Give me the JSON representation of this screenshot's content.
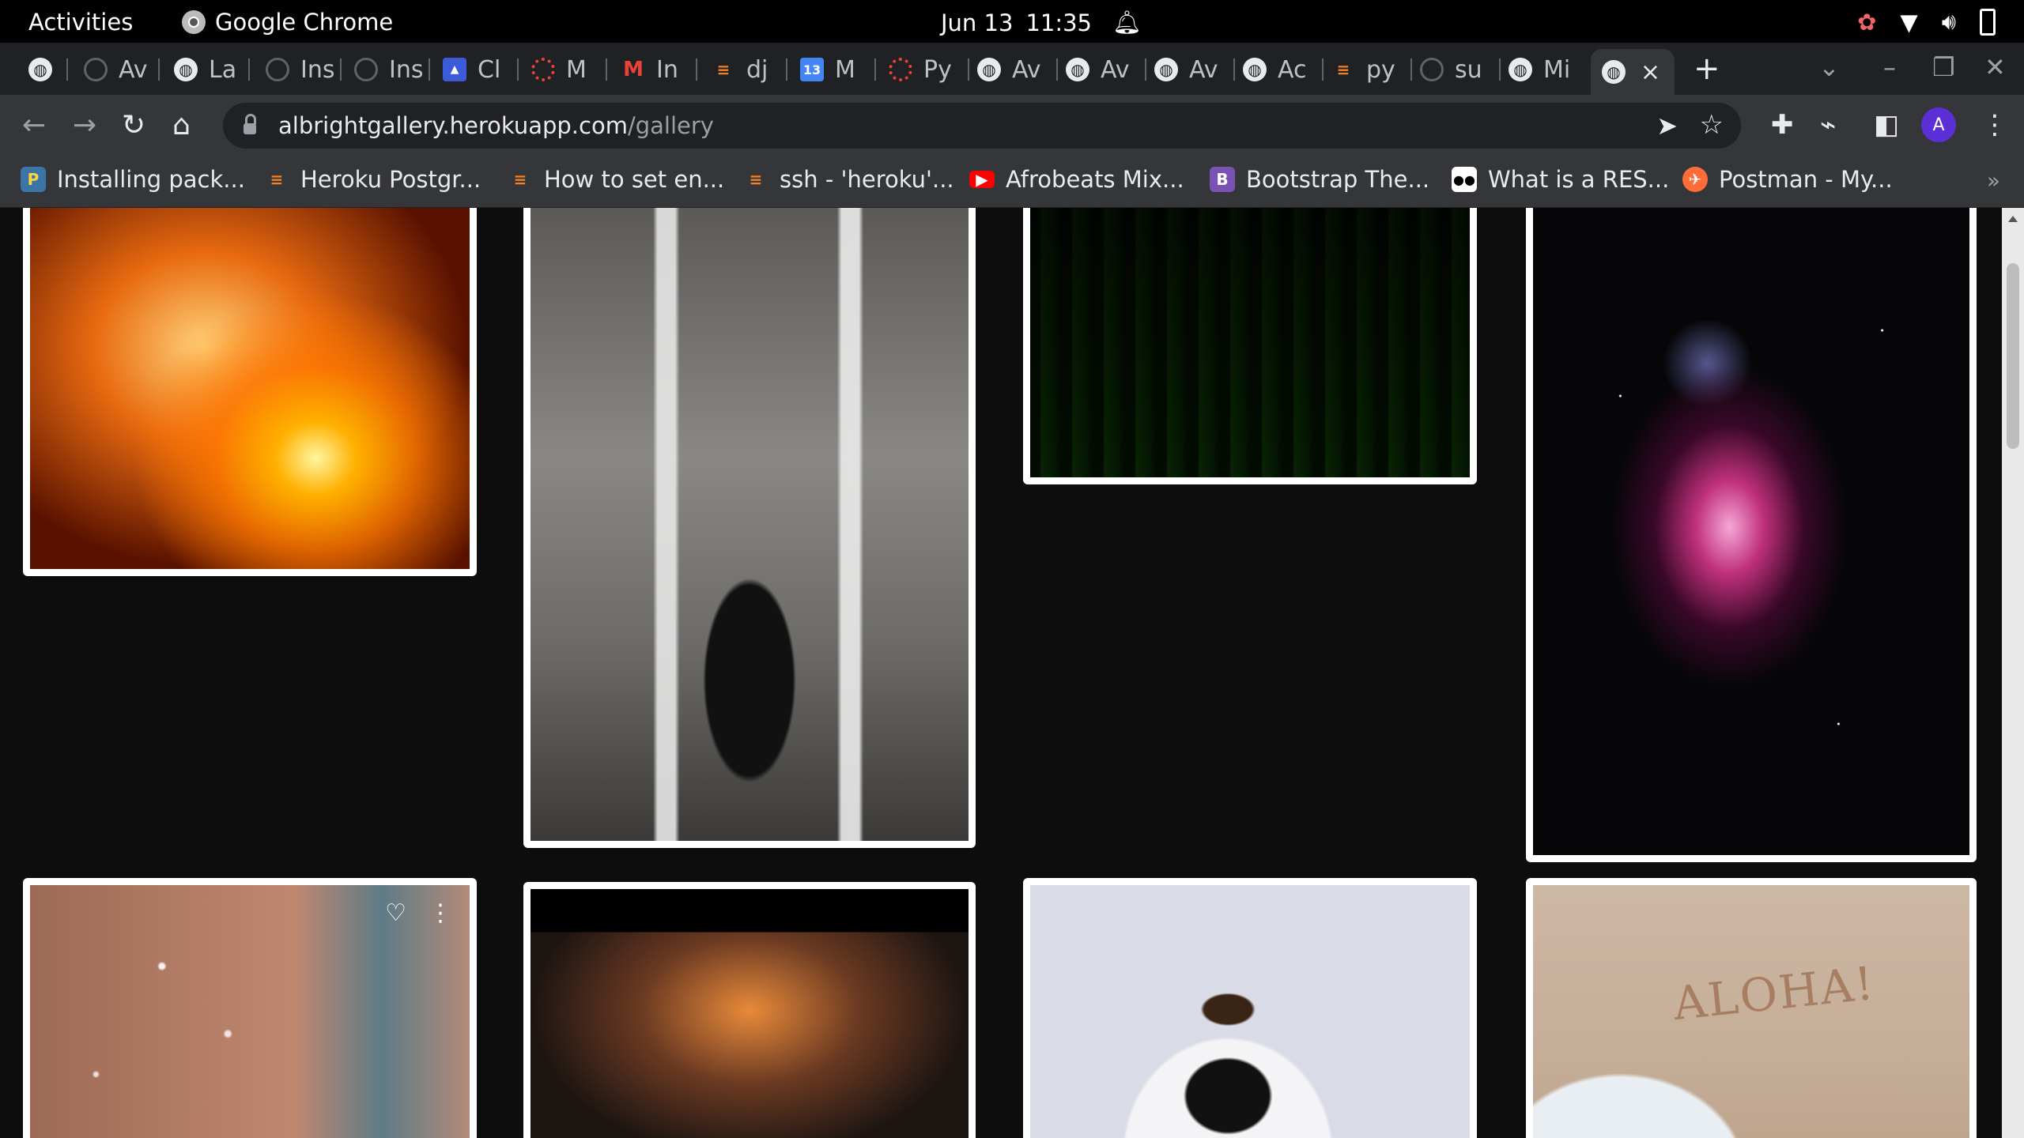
{
  "system_bar": {
    "activities": "Activities",
    "app_name": "Google Chrome",
    "date": "Jun 13",
    "time": "11:35"
  },
  "tabs": [
    {
      "label": "",
      "icon": "globe-icon"
    },
    {
      "label": "Av",
      "icon": "github-icon"
    },
    {
      "label": "La",
      "icon": "globe-icon"
    },
    {
      "label": "Ins",
      "icon": "github-icon"
    },
    {
      "label": "Ins",
      "icon": "github-icon"
    },
    {
      "label": "Cl",
      "icon": "cloud-icon"
    },
    {
      "label": "M",
      "icon": "palette-icon"
    },
    {
      "label": "In",
      "icon": "gmail-icon"
    },
    {
      "label": "dj",
      "icon": "stackoverflow-icon"
    },
    {
      "label": "M",
      "icon": "calendar-icon"
    },
    {
      "label": "Py",
      "icon": "palette-icon"
    },
    {
      "label": "Av",
      "icon": "globe-icon"
    },
    {
      "label": "Av",
      "icon": "globe-icon"
    },
    {
      "label": "Av",
      "icon": "globe-icon"
    },
    {
      "label": "Ac",
      "icon": "globe-icon"
    },
    {
      "label": "py",
      "icon": "stackoverflow-icon"
    },
    {
      "label": "su",
      "icon": "github-icon"
    },
    {
      "label": "Mi",
      "icon": "globe-icon"
    },
    {
      "label": "",
      "icon": "globe-icon",
      "active": true
    }
  ],
  "address_bar": {
    "host": "albrightgallery.herokuapp.com",
    "path": "/gallery"
  },
  "profile": {
    "initial": "A"
  },
  "bookmarks": [
    {
      "label": "Installing pack...",
      "icon": "python-icon"
    },
    {
      "label": "Heroku Postgr...",
      "icon": "stackoverflow-icon"
    },
    {
      "label": "How to set en...",
      "icon": "stackoverflow-icon"
    },
    {
      "label": "ssh - 'heroku'...",
      "icon": "stackoverflow-icon"
    },
    {
      "label": "Afrobeats Mix...",
      "icon": "youtube-icon"
    },
    {
      "label": "Bootstrap The...",
      "icon": "bootstrap-icon"
    },
    {
      "label": "What is a RES...",
      "icon": "medium-icon"
    },
    {
      "label": "Postman - My...",
      "icon": "postman-icon"
    }
  ],
  "bookmarks_more": "»",
  "gallery": {
    "aloha_text": "ALOHA!"
  },
  "colors": {
    "tabstrip": "#202124",
    "toolbar": "#35363a",
    "page_bg": "#0d0d0d",
    "avatar": "#5c2fd6"
  }
}
